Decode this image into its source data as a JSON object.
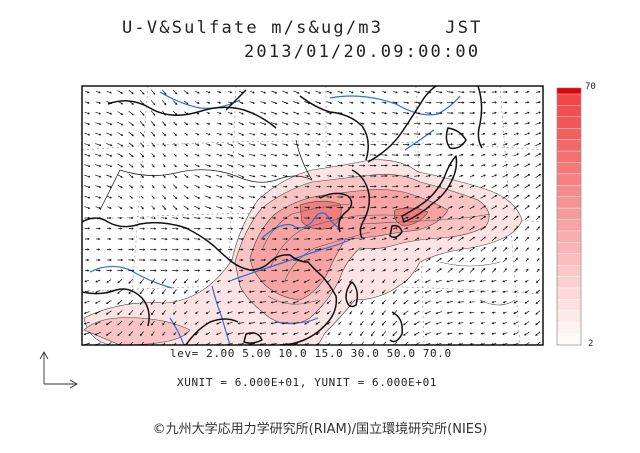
{
  "header": {
    "line1": "U-V&Sulfate m/s&ug/m3     JST",
    "line2": "2013/01/20.09:00:00"
  },
  "map": {
    "variable": "Sulfate",
    "wind_vector": "U-V",
    "colors": {
      "ocean": "#ffffff",
      "coastline": "#111111",
      "river": "#2a6fdb",
      "grid": "#888888",
      "shade_low": "#fde4e4",
      "shade_mid": "#f5a3a3",
      "shade_high": "#e33d3d"
    }
  },
  "colorbar": {
    "max_label": "70",
    "min_label": "2",
    "range": [
      2,
      70
    ],
    "top_color": "#e8000b",
    "bottom_color": "#ffffff"
  },
  "footer": {
    "lev_line": "lev= 2.00 5.00 10.0 15.0 30.0 50.0 70.0",
    "unit_line": "XUNIT = 6.000E+01, YUNIT = 6.000E+01",
    "credit": "©九州大学応用力学研究所(RIAM)/国立環境研究所(NIES)"
  }
}
